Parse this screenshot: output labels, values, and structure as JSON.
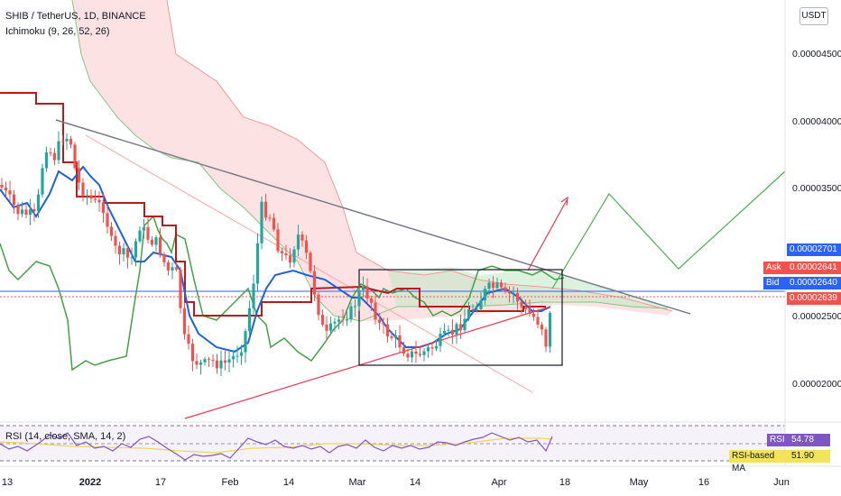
{
  "header": {
    "symbol_title": "SHIB / TetherUS, 1D, BINANCE",
    "indicator_label": "Ichimoku (9, 26, 52, 26)",
    "currency_button": "USDT"
  },
  "price_axis": {
    "ticks": [
      "0.00004500",
      "0.00004000",
      "0.00003500",
      "0.00002500",
      "0.00002000"
    ]
  },
  "price_tags": {
    "last": "0.00002701",
    "ask_label": "Ask",
    "ask_value": "0.00002641",
    "bid_label": "Bid",
    "bid_value": "0.00002640",
    "mark_value": "0.00002639"
  },
  "rsi_panel": {
    "label": "RSI (14, close, SMA, 14, 2)",
    "rsi_tag": "RSI",
    "rsi_value": "54.78",
    "ma_tag": "RSI-based MA",
    "ma_value": "51.90"
  },
  "time_axis": {
    "ticks": [
      "13",
      "2022",
      "17",
      "Feb",
      "14",
      "Mar",
      "14",
      "Apr",
      "18",
      "May",
      "16",
      "Jun"
    ]
  },
  "colors": {
    "up_candle": "#26a69a",
    "down_candle": "#ef5350",
    "kijun": "#b71c1c",
    "tenkan": "#1e63d6",
    "chikou": "#43a047",
    "cloud_bear": "#f8bfbf",
    "cloud_bull": "#bfe7c2",
    "rsi_line": "#7e57c2",
    "rsi_ma": "#f2d45c",
    "ask_red": "#ef5350",
    "bid_blue": "#2962ff"
  }
}
